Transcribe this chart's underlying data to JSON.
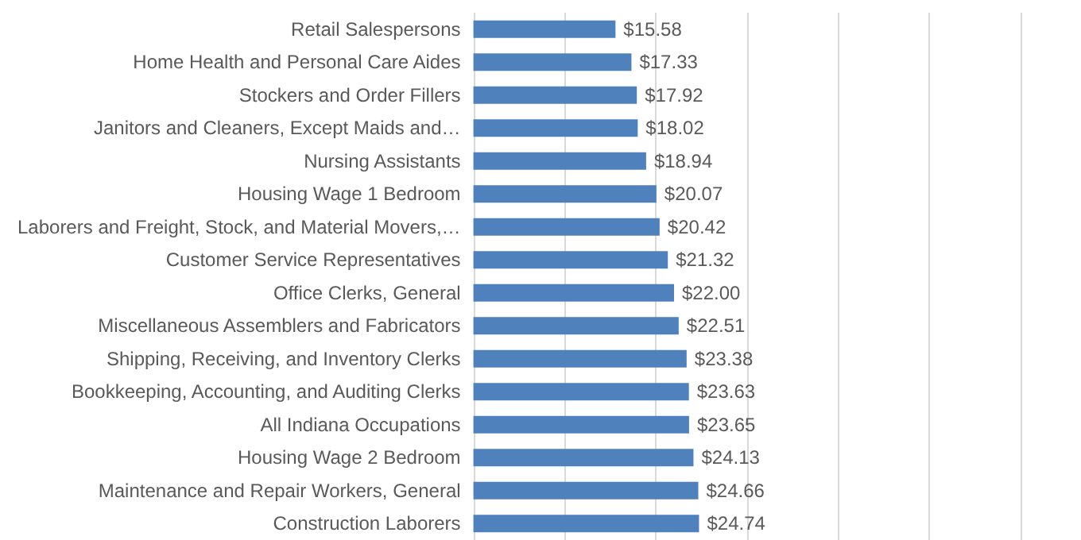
{
  "chart_data": {
    "type": "bar",
    "orientation": "horizontal",
    "categories": [
      "Retail Salespersons",
      "Home Health and Personal Care Aides",
      "Stockers and Order Fillers",
      "Janitors and Cleaners, Except Maids and…",
      "Nursing Assistants",
      "Housing Wage 1 Bedroom",
      "Laborers and Freight, Stock, and Material Movers,…",
      "Customer Service Representatives",
      "Office Clerks, General",
      "Miscellaneous Assemblers and Fabricators",
      "Shipping, Receiving, and Inventory Clerks",
      "Bookkeeping, Accounting, and Auditing Clerks",
      "All Indiana Occupations",
      "Housing Wage 2 Bedroom",
      "Maintenance and Repair Workers, General",
      "Construction Laborers"
    ],
    "values": [
      15.58,
      17.33,
      17.92,
      18.02,
      18.94,
      20.07,
      20.42,
      21.32,
      22.0,
      22.51,
      23.38,
      23.63,
      23.65,
      24.13,
      24.66,
      24.74
    ],
    "value_labels": [
      "$15.58",
      "$17.33",
      "$17.92",
      "$18.02",
      "$18.94",
      "$20.07",
      "$20.42",
      "$21.32",
      "$22.00",
      "$22.51",
      "$23.38",
      "$23.63",
      "$23.65",
      "$24.13",
      "$24.66",
      "$24.74"
    ],
    "color": "#4f81bd",
    "xlim": [
      0,
      60
    ],
    "xticks": [
      {
        "value": 0,
        "label": null
      },
      {
        "value": 10,
        "label": null
      },
      {
        "value": 20,
        "label": null
      },
      {
        "value": 30,
        "label": null
      },
      {
        "value": 40,
        "label": null
      },
      {
        "value": 50,
        "label": null
      },
      {
        "value": 60,
        "label": null
      }
    ],
    "grid": "x",
    "tick_labels": "y"
  }
}
